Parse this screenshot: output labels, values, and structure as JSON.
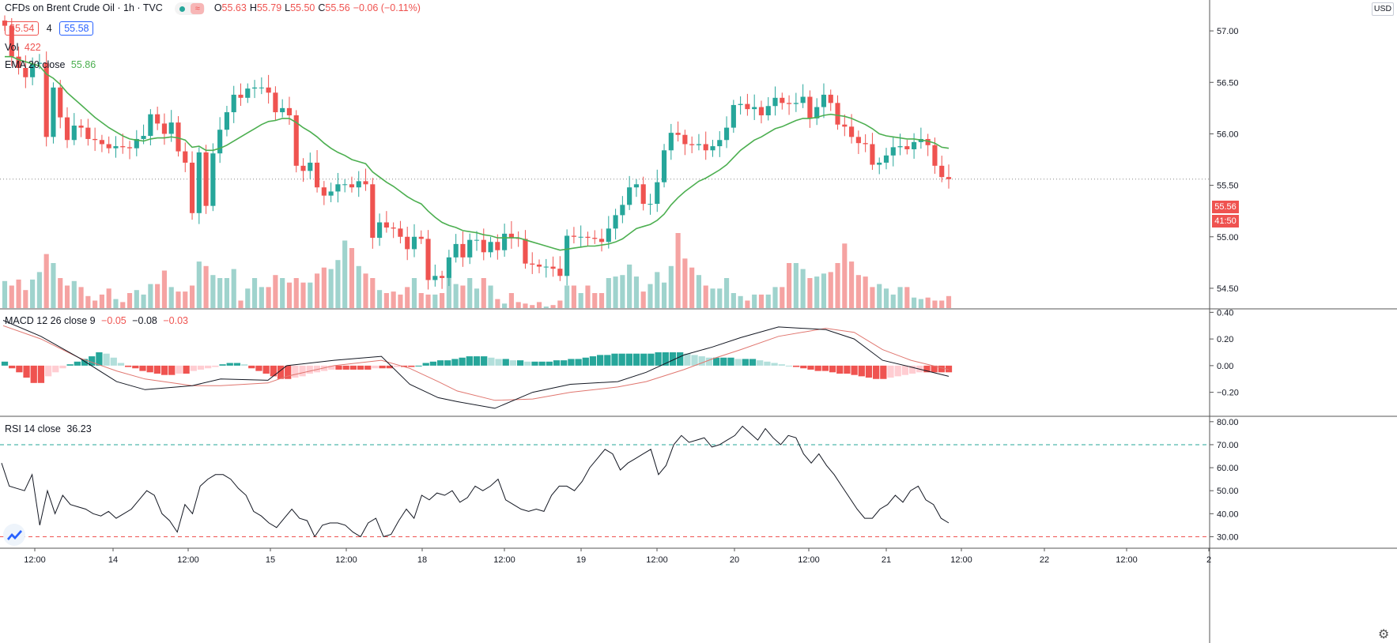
{
  "header": {
    "title": "CFDs on Brent Crude Oil · 1h · TVC",
    "ohlc": [
      {
        "k": "O",
        "v": "55.63"
      },
      {
        "k": "H",
        "v": "55.79"
      },
      {
        "k": "L",
        "v": "55.50"
      },
      {
        "k": "C",
        "v": "55.56"
      },
      {
        "k": "",
        "v": "−0.06 (−0.11%)"
      }
    ],
    "bid": "55.54",
    "spread": "4",
    "ask": "55.58",
    "currency": "USD"
  },
  "indicators": {
    "vol_label": "Vol",
    "vol_value": "422",
    "ema_label": "EMA 20 close",
    "ema_value": "55.86",
    "macd_label": "MACD 12 26 close 9",
    "macd_hist": "−0.05",
    "macd_line": "−0.08",
    "macd_signal": "−0.03",
    "rsi_label": "RSI 14 close",
    "rsi_value": "36.23"
  },
  "tags": {
    "last_price": "55.56",
    "countdown": "41:50"
  },
  "colors": {
    "up": "#26a69a",
    "down": "#ef5350",
    "vol_up": "#9fd3cd",
    "vol_down": "#f5a3a2",
    "ema": "#4caf50",
    "macd": "#131722",
    "signal": "#e0766f",
    "rsi": "#131722"
  },
  "chart_data": [
    {
      "type": "candlestick",
      "title": "CFDs on Brent Crude Oil · 1h · TVC",
      "ylim": [
        54.3,
        57.3
      ],
      "y_ticks": [
        "57.00",
        "56.50",
        "56.00",
        "55.50",
        "55.00",
        "54.50"
      ],
      "x_ticks": [
        "12:00",
        "14",
        "12:00",
        "15",
        "12:00",
        "18",
        "12:00",
        "19",
        "12:00",
        "20",
        "12:00",
        "21",
        "12:00",
        "22",
        "12:00",
        "2"
      ],
      "ohlc_anchors": [
        57.05,
        56.75,
        56.64,
        56.55,
        56.68,
        56.69,
        55.97,
        56.45,
        56.16,
        55.94,
        56.08,
        56.06,
        55.95,
        55.94,
        55.9,
        55.86,
        55.88,
        55.87,
        55.86,
        55.95,
        55.98,
        56.19,
        56.1,
        56.0,
        56.11,
        55.83,
        55.72,
        55.23,
        55.82,
        55.3,
        55.81,
        56.04,
        56.21,
        56.38,
        56.35,
        56.44,
        56.45,
        56.45,
        56.4,
        56.21,
        56.25,
        56.18,
        55.69,
        55.64,
        55.72,
        55.48,
        55.4,
        55.44,
        55.51,
        55.51,
        55.48,
        55.54,
        55.51,
        54.99,
        55.14,
        55.09,
        55.08,
        55.0,
        54.88,
        55.0,
        54.98,
        54.58,
        54.62,
        54.6,
        54.8,
        54.93,
        54.8,
        54.97,
        54.97,
        54.85,
        54.95,
        54.87,
        55.03,
        54.99,
        54.98,
        54.74,
        54.73,
        54.71,
        54.71,
        54.69,
        54.62,
        55.01,
        55.0,
        55.0,
        54.99,
        54.98,
        54.95,
        55.08,
        55.21,
        55.31,
        55.48,
        55.51,
        55.32,
        55.32,
        55.53,
        55.84,
        56.01,
        55.99,
        55.9,
        55.89,
        55.9,
        55.84,
        55.88,
        55.94,
        56.06,
        56.28,
        56.29,
        56.24,
        56.26,
        56.18,
        56.27,
        56.35,
        56.3,
        56.29,
        56.3,
        56.36,
        56.15,
        56.26,
        56.38,
        56.3,
        56.09,
        56.07,
        55.97,
        55.91,
        55.9,
        55.7,
        55.72,
        55.79,
        55.87,
        55.88,
        55.85,
        55.92,
        55.95,
        55.89,
        55.69,
        55.58,
        55.56
      ],
      "ema20": [
        56.75,
        56.75,
        56.72,
        56.7,
        56.68,
        56.66,
        56.58,
        56.54,
        56.48,
        56.4,
        56.34,
        56.28,
        56.22,
        56.16,
        56.11,
        56.06,
        56.02,
        55.98,
        55.95,
        55.94,
        55.93,
        55.95,
        55.96,
        55.96,
        55.97,
        55.96,
        55.94,
        55.87,
        55.88,
        55.84,
        55.84,
        55.86,
        55.89,
        55.93,
        55.97,
        56.01,
        56.05,
        56.09,
        56.12,
        56.13,
        56.15,
        56.15,
        56.11,
        56.06,
        56.02,
        55.97,
        55.91,
        55.86,
        55.82,
        55.79,
        55.75,
        55.73,
        55.71,
        55.63,
        55.58,
        55.53,
        55.49,
        55.44,
        55.39,
        55.35,
        55.32,
        55.25,
        55.19,
        55.14,
        55.11,
        55.09,
        55.06,
        55.05,
        55.04,
        55.02,
        55.01,
        54.99,
        54.99,
        54.99,
        54.99,
        54.97,
        54.95,
        54.93,
        54.91,
        54.89,
        54.87,
        54.88,
        54.89,
        54.9,
        54.91,
        54.91,
        54.92,
        54.93,
        54.95,
        54.98,
        55.03,
        55.08,
        55.1,
        55.12,
        55.16,
        55.22,
        55.31,
        55.38,
        55.44,
        55.49,
        55.54,
        55.57,
        55.61,
        55.65,
        55.7,
        55.77,
        55.84,
        55.89,
        55.94,
        55.97,
        56.01,
        56.05,
        56.07,
        56.1,
        56.13,
        56.15,
        56.15,
        56.16,
        56.18,
        56.19,
        56.18,
        56.17,
        56.15,
        56.12,
        56.09,
        56.05,
        56.0,
        55.98,
        55.97,
        55.96,
        55.95,
        55.95,
        55.94,
        55.93,
        55.91,
        55.87,
        55.86
      ],
      "volume": [
        18,
        15,
        19,
        12,
        19,
        24,
        36,
        30,
        20,
        15,
        18,
        14,
        8,
        5,
        9,
        13,
        6,
        4,
        10,
        12,
        9,
        16,
        16,
        25,
        14,
        11,
        11,
        15,
        31,
        28,
        22,
        20,
        20,
        26,
        5,
        13,
        20,
        14,
        14,
        22,
        20,
        17,
        20,
        17,
        17,
        23,
        27,
        26,
        32,
        45,
        40,
        28,
        23,
        20,
        12,
        10,
        11,
        9,
        14,
        20,
        10,
        9,
        9,
        10,
        20,
        16,
        15,
        20,
        13,
        20,
        15,
        6,
        3,
        10,
        4,
        3,
        2,
        4,
        1,
        2,
        5,
        15,
        15,
        10,
        15,
        10,
        10,
        20,
        21,
        22,
        29,
        21,
        11,
        16,
        24,
        17,
        28,
        50,
        33,
        27,
        22,
        15,
        13,
        13,
        20,
        10,
        8,
        5,
        9,
        9,
        9,
        14,
        14,
        30,
        30,
        26,
        20,
        21,
        23,
        24,
        30,
        43,
        31,
        22,
        21,
        14,
        16,
        13,
        9,
        14,
        14,
        7,
        6,
        7,
        5,
        5,
        8
      ]
    },
    {
      "type": "line",
      "title": "MACD 12 26 close 9",
      "ylim": [
        -0.38,
        0.42
      ],
      "y_ticks": [
        "0.40",
        "0.20",
        "0.00",
        "−0.20"
      ],
      "anchors_x": [
        0,
        0.04,
        0.08,
        0.12,
        0.15,
        0.2,
        0.23,
        0.28,
        0.3,
        0.35,
        0.4,
        0.43,
        0.46,
        0.48,
        0.52,
        0.56,
        0.6,
        0.65,
        0.68,
        0.72,
        0.75,
        0.78,
        0.82,
        0.87,
        0.9,
        0.93,
        0.96,
        1.0
      ],
      "macd": [
        0.34,
        0.22,
        0.06,
        -0.12,
        -0.18,
        -0.15,
        -0.1,
        -0.11,
        0.0,
        0.04,
        0.07,
        -0.14,
        -0.24,
        -0.27,
        -0.32,
        -0.2,
        -0.14,
        -0.12,
        -0.05,
        0.08,
        0.14,
        0.21,
        0.29,
        0.27,
        0.2,
        0.04,
        -0.01,
        -0.08
      ],
      "signal": [
        0.3,
        0.2,
        0.06,
        -0.04,
        -0.1,
        -0.15,
        -0.15,
        -0.13,
        -0.08,
        0.0,
        0.04,
        -0.02,
        -0.12,
        -0.19,
        -0.26,
        -0.25,
        -0.2,
        -0.16,
        -0.12,
        -0.03,
        0.05,
        0.12,
        0.22,
        0.28,
        0.25,
        0.12,
        0.04,
        -0.03
      ],
      "histogram": [
        0.03,
        -0.02,
        -0.05,
        -0.09,
        -0.13,
        -0.13,
        -0.08,
        -0.05,
        -0.02,
        0.01,
        0.03,
        0.05,
        0.07,
        0.1,
        0.09,
        0.06,
        0.02,
        -0.01,
        -0.02,
        -0.04,
        -0.05,
        -0.06,
        -0.07,
        -0.07,
        -0.06,
        -0.06,
        -0.04,
        -0.03,
        -0.02,
        -0.01,
        0.01,
        0.02,
        0.02,
        0.01,
        -0.02,
        -0.04,
        -0.06,
        -0.08,
        -0.1,
        -0.1,
        -0.09,
        -0.08,
        -0.06,
        -0.05,
        -0.04,
        -0.03,
        -0.03,
        -0.03,
        -0.03,
        -0.03,
        -0.03,
        -0.02,
        -0.02,
        -0.02,
        -0.01,
        -0.01,
        -0.01,
        0.0,
        0.02,
        0.03,
        0.04,
        0.04,
        0.05,
        0.06,
        0.07,
        0.07,
        0.07,
        0.06,
        0.05,
        0.05,
        0.04,
        0.04,
        0.03,
        0.03,
        0.03,
        0.03,
        0.04,
        0.04,
        0.05,
        0.05,
        0.06,
        0.07,
        0.08,
        0.08,
        0.09,
        0.09,
        0.09,
        0.09,
        0.09,
        0.09,
        0.1,
        0.1,
        0.1,
        0.1,
        0.09,
        0.08,
        0.07,
        0.06,
        0.06,
        0.06,
        0.06,
        0.05,
        0.05,
        0.05,
        0.04,
        0.03,
        0.02,
        0.01,
        0.0,
        -0.01,
        -0.02,
        -0.03,
        -0.04,
        -0.04,
        -0.05,
        -0.06,
        -0.06,
        -0.07,
        -0.08,
        -0.09,
        -0.1,
        -0.1,
        -0.09,
        -0.08,
        -0.07,
        -0.06,
        -0.05,
        -0.05,
        -0.05,
        -0.05,
        -0.05
      ]
    },
    {
      "type": "line",
      "title": "RSI 14 close",
      "ylim": [
        25,
        82
      ],
      "y_ticks": [
        "80.00",
        "70.00",
        "60.00",
        "50.00",
        "40.00",
        "30.00"
      ],
      "bands": [
        70,
        30
      ],
      "values": [
        62,
        52,
        51,
        50,
        57,
        35,
        50,
        40,
        48,
        44,
        43,
        42,
        40,
        39,
        41,
        38,
        40,
        42,
        46,
        50,
        48,
        40,
        37,
        32,
        44,
        40,
        52,
        55,
        57,
        57,
        55,
        51,
        48,
        41,
        39,
        36,
        34,
        38,
        42,
        38,
        37,
        30,
        35,
        36,
        36,
        35,
        32,
        30,
        36,
        38,
        30,
        31,
        37,
        42,
        38,
        48,
        46,
        49,
        48,
        50,
        45,
        47,
        52,
        50,
        52,
        55,
        46,
        44,
        42,
        41,
        42,
        41,
        48,
        52,
        52,
        50,
        54,
        60,
        64,
        68,
        66,
        59,
        62,
        64,
        66,
        68,
        57,
        61,
        70,
        74,
        71,
        72,
        73,
        69,
        70,
        72,
        74,
        78,
        75,
        72,
        77,
        73,
        70,
        74,
        73,
        66,
        62,
        66,
        61,
        57,
        52,
        47,
        42,
        38,
        38,
        42,
        44,
        48,
        45,
        50,
        52,
        46,
        44,
        38,
        36
      ],
      "current_value": 36.23
    }
  ]
}
